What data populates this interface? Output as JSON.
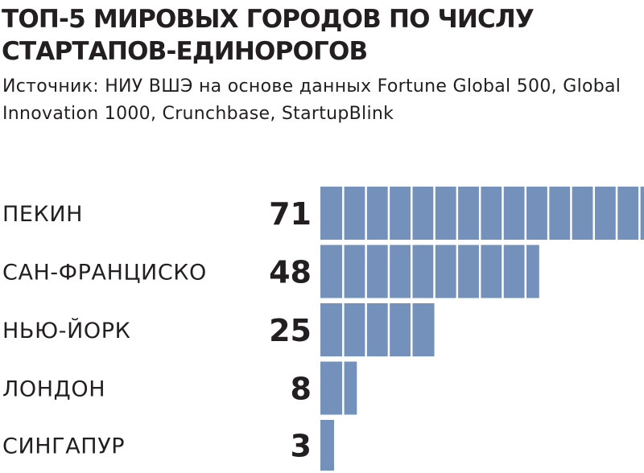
{
  "chart_data": {
    "type": "bar",
    "orientation": "horizontal",
    "title": "ТОП-5 МИРОВЫХ ГОРОДОВ ПО ЧИСЛУ СТАРТАПОВ-ЕДИНОРОГОВ",
    "source": "Источник: НИУ ВШЭ на основе данных Fortune Global 500, Global Innovation 1000, Crunchbase, StartupBlink",
    "categories": [
      "ПЕКИН",
      "САН-ФРАНЦИСКО",
      "НЬЮ-ЙОРК",
      "ЛОНДОН",
      "СИНГАПУР"
    ],
    "values": [
      71,
      48,
      25,
      8,
      3
    ],
    "value_labels": [
      "71",
      "48",
      "25",
      "8",
      "3"
    ],
    "segment_size": 5,
    "xlim": [
      0,
      71
    ],
    "grid": false,
    "legend": "none",
    "colors": {
      "bar": "#7391bb",
      "segment_divider": "#ffffff",
      "text": "#231f20",
      "background": "#ffffff"
    }
  }
}
